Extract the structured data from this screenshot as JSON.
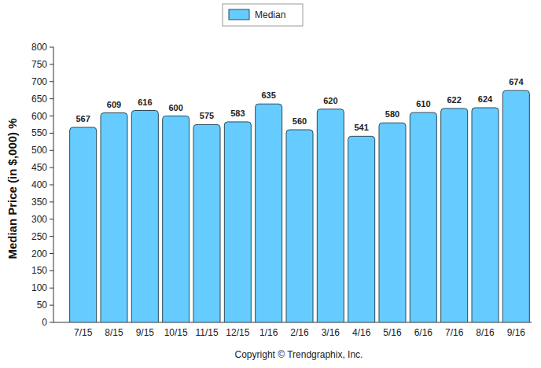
{
  "chart_data": {
    "type": "bar",
    "ylabel": "Median Price (in $,000) %",
    "categories": [
      "7/15",
      "8/15",
      "9/15",
      "10/15",
      "11/15",
      "12/15",
      "1/16",
      "2/16",
      "3/16",
      "4/16",
      "5/16",
      "6/16",
      "7/16",
      "8/16",
      "9/16"
    ],
    "series": [
      {
        "name": "Median",
        "color": "#66ccff",
        "values": [
          567,
          609,
          616,
          600,
          575,
          583,
          635,
          560,
          620,
          541,
          580,
          610,
          622,
          624,
          674
        ]
      }
    ],
    "ylim": [
      0,
      800
    ],
    "yticks": [
      0,
      50,
      100,
      150,
      200,
      250,
      300,
      350,
      400,
      450,
      500,
      550,
      600,
      650,
      700,
      750,
      800
    ],
    "grid": false,
    "legend": "top",
    "data_labels": true,
    "annotations": [
      "Copyright © Trendgraphix, Inc."
    ]
  }
}
